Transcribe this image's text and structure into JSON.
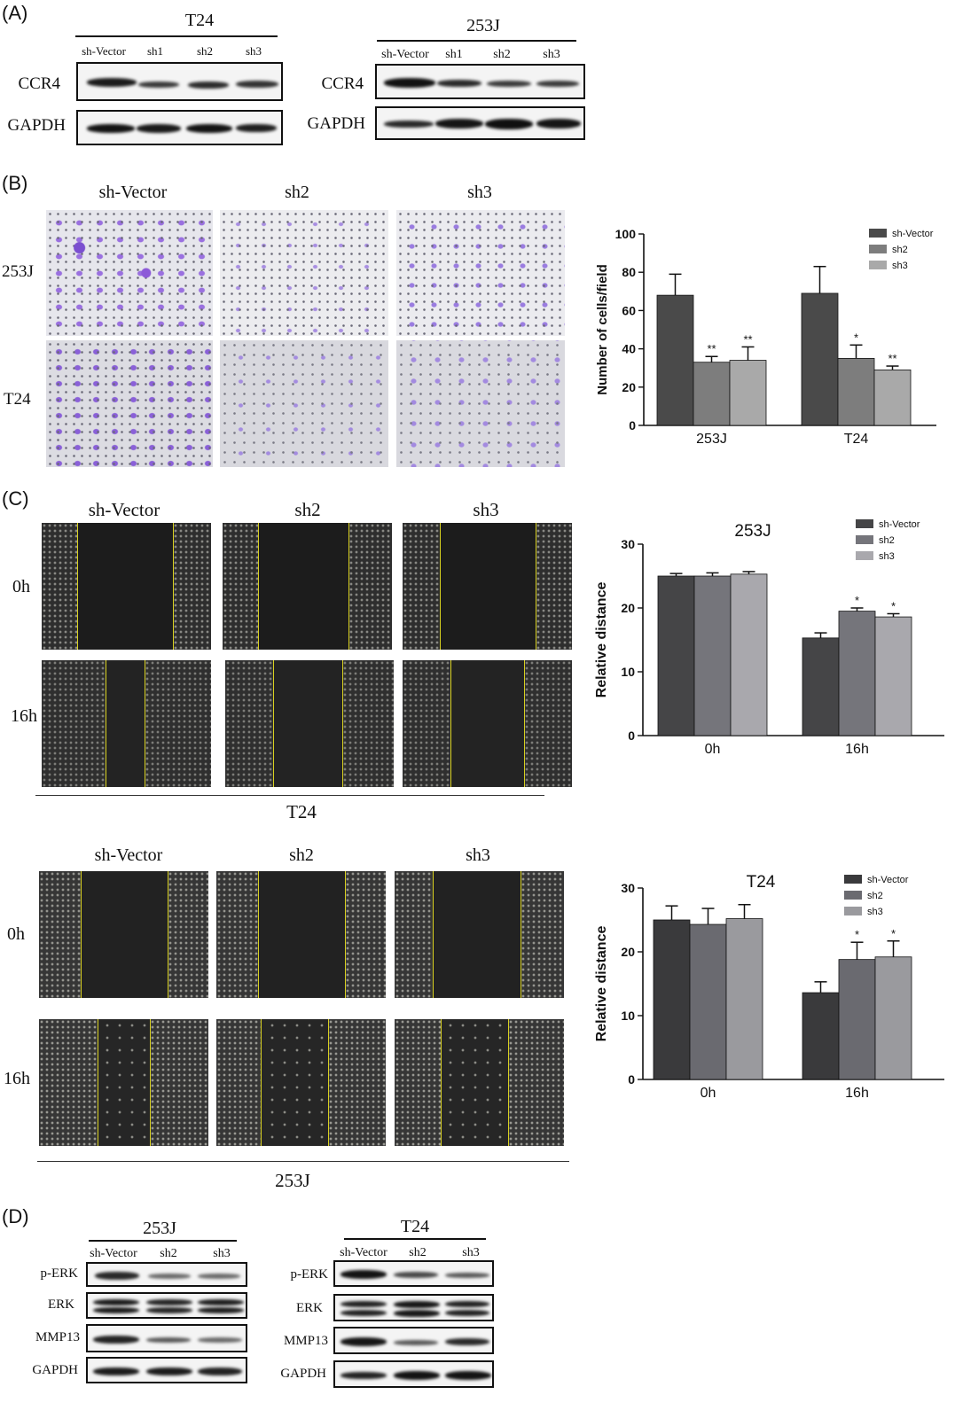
{
  "panels": {
    "A": {
      "label": "(A)",
      "left": {
        "title": "T24",
        "lanes": [
          "sh-Vector",
          "sh1",
          "sh2",
          "sh3"
        ],
        "rows": [
          "CCR4",
          "GAPDH"
        ]
      },
      "right": {
        "title": "253J",
        "lanes": [
          "sh-Vector",
          "sh1",
          "sh2",
          "sh3"
        ],
        "rows": [
          "CCR4",
          "GAPDH"
        ]
      }
    },
    "B": {
      "label": "(B)",
      "cols": [
        "sh-Vector",
        "sh2",
        "sh3"
      ],
      "rows": [
        "253J",
        "T24"
      ]
    },
    "C": {
      "label": "(C)",
      "top": {
        "cols": [
          "sh-Vector",
          "sh2",
          "sh3"
        ],
        "rows": [
          "0h",
          "16h"
        ],
        "caption": "T24"
      },
      "bottom": {
        "cols": [
          "sh-Vector",
          "sh2",
          "sh3"
        ],
        "rows": [
          "0h",
          "16h"
        ],
        "caption": "253J"
      }
    },
    "D": {
      "label": "(D)",
      "left": {
        "title": "253J",
        "lanes": [
          "sh-Vector",
          "sh2",
          "sh3"
        ],
        "rows": [
          "p-ERK",
          "ERK",
          "MMP13",
          "GAPDH"
        ]
      },
      "right": {
        "title": "T24",
        "lanes": [
          "sh-Vector",
          "sh2",
          "sh3"
        ],
        "rows": [
          "p-ERK",
          "ERK",
          "MMP13",
          "GAPDH"
        ]
      }
    }
  },
  "chart_data": [
    {
      "type": "bar",
      "title": "",
      "categories": [
        "253J",
        "T24"
      ],
      "ylabel": "Number of cells/field",
      "ylim": [
        0,
        100
      ],
      "yticks": [
        0,
        20,
        40,
        60,
        80,
        100
      ],
      "series": [
        {
          "name": "sh-Vector",
          "values": [
            68,
            69
          ],
          "errors": [
            11,
            14
          ],
          "sig": [
            "",
            ""
          ],
          "color": "#4a4a4a"
        },
        {
          "name": "sh2",
          "values": [
            33,
            35
          ],
          "errors": [
            3,
            7
          ],
          "sig": [
            "**",
            "*"
          ],
          "color": "#7d7d7d"
        },
        {
          "name": "sh3",
          "values": [
            34,
            29
          ],
          "errors": [
            7,
            2
          ],
          "sig": [
            "**",
            "**"
          ],
          "color": "#a9a9a9"
        }
      ],
      "legend": "top-right"
    },
    {
      "type": "bar",
      "title": "253J",
      "categories": [
        "0h",
        "16h"
      ],
      "ylabel": "Relative distance",
      "ylim": [
        0,
        30
      ],
      "yticks": [
        0,
        10,
        20,
        30
      ],
      "series": [
        {
          "name": "sh-Vector",
          "values": [
            25,
            15.3
          ],
          "errors": [
            0.4,
            0.8
          ],
          "sig": [
            "",
            ""
          ],
          "color": "#454547"
        },
        {
          "name": "sh2",
          "values": [
            25,
            19.5
          ],
          "errors": [
            0.5,
            0.5
          ],
          "sig": [
            "",
            "*"
          ],
          "color": "#75757b"
        },
        {
          "name": "sh3",
          "values": [
            25.3,
            18.6
          ],
          "errors": [
            0.4,
            0.5
          ],
          "sig": [
            "",
            "*"
          ],
          "color": "#a9a8ad"
        }
      ],
      "legend": "top-right"
    },
    {
      "type": "bar",
      "title": "T24",
      "categories": [
        "0h",
        "16h"
      ],
      "ylabel": "Relative distance",
      "ylim": [
        0,
        30
      ],
      "yticks": [
        0,
        10,
        20,
        30
      ],
      "series": [
        {
          "name": "sh-Vector",
          "values": [
            25,
            13.6
          ],
          "errors": [
            2.2,
            1.7
          ],
          "sig": [
            "",
            ""
          ],
          "color": "#3a3a3c"
        },
        {
          "name": "sh2",
          "values": [
            24.3,
            18.8
          ],
          "errors": [
            2.5,
            2.7
          ],
          "sig": [
            "",
            "*"
          ],
          "color": "#6a6a70"
        },
        {
          "name": "sh3",
          "values": [
            25.2,
            19.2
          ],
          "errors": [
            2.2,
            2.5
          ],
          "sig": [
            "",
            "*"
          ],
          "color": "#9a9a9e"
        }
      ],
      "legend": "top-right"
    }
  ]
}
